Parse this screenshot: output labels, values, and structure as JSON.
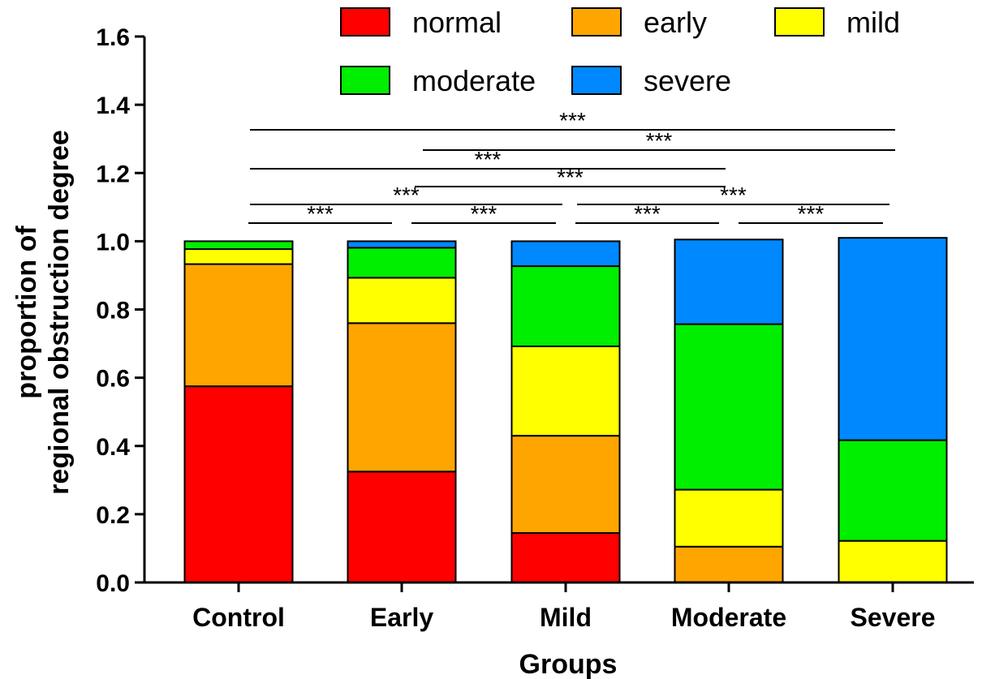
{
  "chart_data": {
    "type": "bar",
    "stacked": true,
    "categories": [
      "Control",
      "Early",
      "Mild",
      "Moderate",
      "Severe"
    ],
    "xlabel": "Groups",
    "ylabel_lines": [
      "proportion of",
      "regional obstruction degree"
    ],
    "ylim": [
      0,
      1.6
    ],
    "yticks": [
      "0.0",
      "0.2",
      "0.4",
      "0.6",
      "0.8",
      "1.0",
      "1.2",
      "1.4",
      "1.6"
    ],
    "legend_position": "top",
    "series": [
      {
        "name": "normal",
        "color": "#ff0000",
        "values": [
          0.575,
          0.325,
          0.145,
          0.0,
          0.0
        ]
      },
      {
        "name": "early",
        "color": "#ffa500",
        "values": [
          0.358,
          0.435,
          0.285,
          0.105,
          0.0
        ]
      },
      {
        "name": "mild",
        "color": "#ffff00",
        "values": [
          0.044,
          0.133,
          0.262,
          0.167,
          0.122
        ]
      },
      {
        "name": "moderate",
        "color": "#00ee00",
        "values": [
          0.023,
          0.088,
          0.235,
          0.485,
          0.295
        ]
      },
      {
        "name": "severe",
        "color": "#0088ff",
        "values": [
          0.0,
          0.019,
          0.073,
          0.248,
          0.593
        ]
      }
    ],
    "significance": [
      {
        "from": 0,
        "to": 1,
        "label": "***"
      },
      {
        "from": 1,
        "to": 2,
        "label": "***"
      },
      {
        "from": 2,
        "to": 3,
        "label": "***"
      },
      {
        "from": 3,
        "to": 4,
        "label": "***"
      },
      {
        "from": 0,
        "to": 2,
        "label": "***"
      },
      {
        "from": 2,
        "to": 4,
        "label": "***"
      },
      {
        "from": 1,
        "to": 3,
        "label": "***"
      },
      {
        "from": 0,
        "to": 3,
        "label": "***"
      },
      {
        "from": 1,
        "to": 4,
        "label": "***"
      },
      {
        "from": 0,
        "to": 4,
        "label": "***"
      }
    ]
  }
}
